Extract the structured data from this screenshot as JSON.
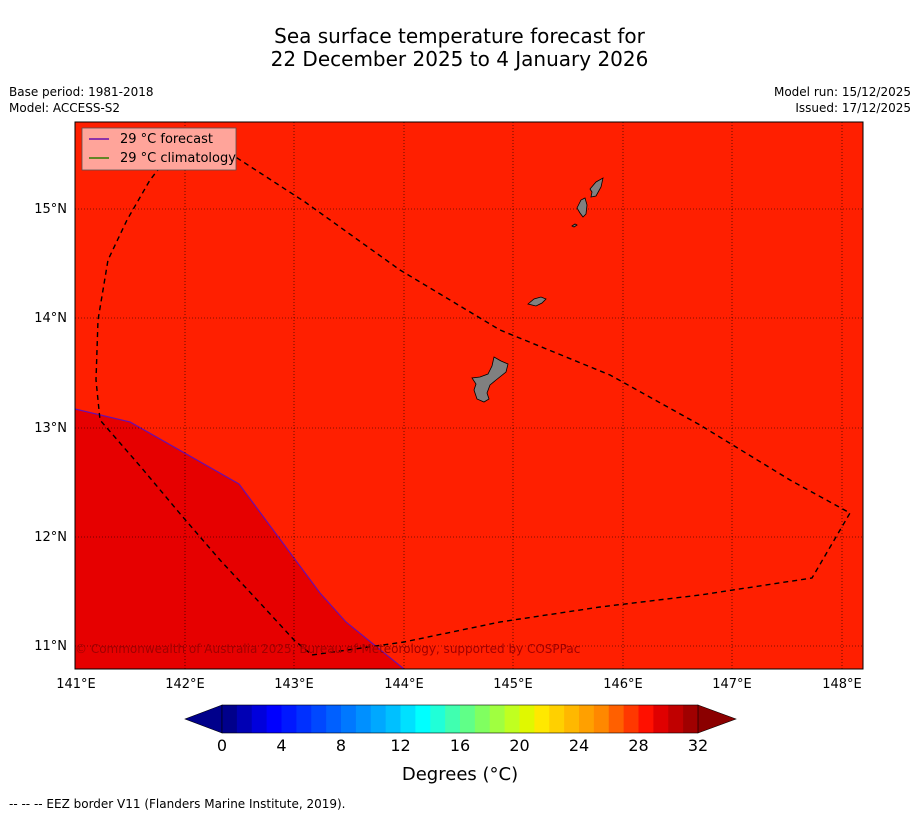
{
  "title": {
    "line1": "Sea surface temperature forecast for",
    "line2": "22 December 2025 to 4 January 2026"
  },
  "meta": {
    "base_period": "Base period: 1981-2018",
    "model": "Model: ACCESS-S2",
    "model_run": "Model run: 15/12/2025",
    "issued": "Issued: 17/12/2025"
  },
  "map": {
    "lon_range": [
      141,
      148.2
    ],
    "lat_range": [
      10.8,
      15.8
    ],
    "x_ticks": [
      "141°E",
      "142°E",
      "143°E",
      "144°E",
      "145°E",
      "146°E",
      "147°E",
      "148°E"
    ],
    "y_ticks": [
      "15°N",
      "14°N",
      "13°N",
      "12°N",
      "11°N"
    ],
    "watermark": "© Commonwealth of Australia 2025, Bureau of Meteorology, supported by COSPPac",
    "legend": [
      {
        "label": "29 °C  forecast",
        "color": "#6a0dad"
      },
      {
        "label": "29 °C  climatology",
        "color": "#2e7d00"
      }
    ],
    "colors": {
      "sea_main": "#ff1f00",
      "sea_warm": "#e60000",
      "land": "#808080",
      "legend_bg": "#ffa49a"
    }
  },
  "colorbar": {
    "tick_labels": [
      "0",
      "4",
      "8",
      "12",
      "16",
      "20",
      "24",
      "28",
      "32"
    ],
    "label": "Degrees (°C)",
    "colors": [
      "#00008b",
      "#0000b4",
      "#0000dc",
      "#0000ff",
      "#0018ff",
      "#0030ff",
      "#0048ff",
      "#0060ff",
      "#0078ff",
      "#0090ff",
      "#00a8ff",
      "#00c0ff",
      "#00e0ff",
      "#00ffff",
      "#20ffd8",
      "#40ffb0",
      "#60ff88",
      "#80ff60",
      "#a0ff40",
      "#c0ff20",
      "#e0f800",
      "#ffe800",
      "#ffd000",
      "#ffb800",
      "#ffa000",
      "#ff8800",
      "#ff6000",
      "#ff3800",
      "#ff1000",
      "#e00000",
      "#c00000",
      "#a00000"
    ]
  },
  "footer": "--  --  -- EEZ border V11 (Flanders Marine Institute, 2019)."
}
